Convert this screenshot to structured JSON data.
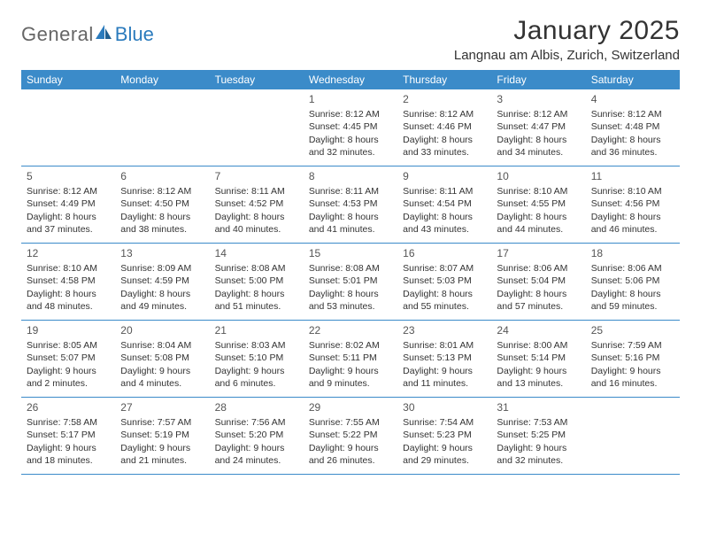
{
  "brand": {
    "part1": "General",
    "part2": "Blue"
  },
  "title": "January 2025",
  "location": "Langnau am Albis, Zurich, Switzerland",
  "colors": {
    "header_bg": "#3b8bc9",
    "header_text": "#ffffff",
    "rule": "#3b8bc9",
    "text": "#333333",
    "logo_gray": "#666666",
    "logo_blue": "#2b7bbd",
    "background": "#ffffff"
  },
  "weekdays": [
    "Sunday",
    "Monday",
    "Tuesday",
    "Wednesday",
    "Thursday",
    "Friday",
    "Saturday"
  ],
  "weeks": [
    [
      null,
      null,
      null,
      {
        "n": "1",
        "sunrise": "8:12 AM",
        "sunset": "4:45 PM",
        "dl1": "Daylight: 8 hours",
        "dl2": "and 32 minutes."
      },
      {
        "n": "2",
        "sunrise": "8:12 AM",
        "sunset": "4:46 PM",
        "dl1": "Daylight: 8 hours",
        "dl2": "and 33 minutes."
      },
      {
        "n": "3",
        "sunrise": "8:12 AM",
        "sunset": "4:47 PM",
        "dl1": "Daylight: 8 hours",
        "dl2": "and 34 minutes."
      },
      {
        "n": "4",
        "sunrise": "8:12 AM",
        "sunset": "4:48 PM",
        "dl1": "Daylight: 8 hours",
        "dl2": "and 36 minutes."
      }
    ],
    [
      {
        "n": "5",
        "sunrise": "8:12 AM",
        "sunset": "4:49 PM",
        "dl1": "Daylight: 8 hours",
        "dl2": "and 37 minutes."
      },
      {
        "n": "6",
        "sunrise": "8:12 AM",
        "sunset": "4:50 PM",
        "dl1": "Daylight: 8 hours",
        "dl2": "and 38 minutes."
      },
      {
        "n": "7",
        "sunrise": "8:11 AM",
        "sunset": "4:52 PM",
        "dl1": "Daylight: 8 hours",
        "dl2": "and 40 minutes."
      },
      {
        "n": "8",
        "sunrise": "8:11 AM",
        "sunset": "4:53 PM",
        "dl1": "Daylight: 8 hours",
        "dl2": "and 41 minutes."
      },
      {
        "n": "9",
        "sunrise": "8:11 AM",
        "sunset": "4:54 PM",
        "dl1": "Daylight: 8 hours",
        "dl2": "and 43 minutes."
      },
      {
        "n": "10",
        "sunrise": "8:10 AM",
        "sunset": "4:55 PM",
        "dl1": "Daylight: 8 hours",
        "dl2": "and 44 minutes."
      },
      {
        "n": "11",
        "sunrise": "8:10 AM",
        "sunset": "4:56 PM",
        "dl1": "Daylight: 8 hours",
        "dl2": "and 46 minutes."
      }
    ],
    [
      {
        "n": "12",
        "sunrise": "8:10 AM",
        "sunset": "4:58 PM",
        "dl1": "Daylight: 8 hours",
        "dl2": "and 48 minutes."
      },
      {
        "n": "13",
        "sunrise": "8:09 AM",
        "sunset": "4:59 PM",
        "dl1": "Daylight: 8 hours",
        "dl2": "and 49 minutes."
      },
      {
        "n": "14",
        "sunrise": "8:08 AM",
        "sunset": "5:00 PM",
        "dl1": "Daylight: 8 hours",
        "dl2": "and 51 minutes."
      },
      {
        "n": "15",
        "sunrise": "8:08 AM",
        "sunset": "5:01 PM",
        "dl1": "Daylight: 8 hours",
        "dl2": "and 53 minutes."
      },
      {
        "n": "16",
        "sunrise": "8:07 AM",
        "sunset": "5:03 PM",
        "dl1": "Daylight: 8 hours",
        "dl2": "and 55 minutes."
      },
      {
        "n": "17",
        "sunrise": "8:06 AM",
        "sunset": "5:04 PM",
        "dl1": "Daylight: 8 hours",
        "dl2": "and 57 minutes."
      },
      {
        "n": "18",
        "sunrise": "8:06 AM",
        "sunset": "5:06 PM",
        "dl1": "Daylight: 8 hours",
        "dl2": "and 59 minutes."
      }
    ],
    [
      {
        "n": "19",
        "sunrise": "8:05 AM",
        "sunset": "5:07 PM",
        "dl1": "Daylight: 9 hours",
        "dl2": "and 2 minutes."
      },
      {
        "n": "20",
        "sunrise": "8:04 AM",
        "sunset": "5:08 PM",
        "dl1": "Daylight: 9 hours",
        "dl2": "and 4 minutes."
      },
      {
        "n": "21",
        "sunrise": "8:03 AM",
        "sunset": "5:10 PM",
        "dl1": "Daylight: 9 hours",
        "dl2": "and 6 minutes."
      },
      {
        "n": "22",
        "sunrise": "8:02 AM",
        "sunset": "5:11 PM",
        "dl1": "Daylight: 9 hours",
        "dl2": "and 9 minutes."
      },
      {
        "n": "23",
        "sunrise": "8:01 AM",
        "sunset": "5:13 PM",
        "dl1": "Daylight: 9 hours",
        "dl2": "and 11 minutes."
      },
      {
        "n": "24",
        "sunrise": "8:00 AM",
        "sunset": "5:14 PM",
        "dl1": "Daylight: 9 hours",
        "dl2": "and 13 minutes."
      },
      {
        "n": "25",
        "sunrise": "7:59 AM",
        "sunset": "5:16 PM",
        "dl1": "Daylight: 9 hours",
        "dl2": "and 16 minutes."
      }
    ],
    [
      {
        "n": "26",
        "sunrise": "7:58 AM",
        "sunset": "5:17 PM",
        "dl1": "Daylight: 9 hours",
        "dl2": "and 18 minutes."
      },
      {
        "n": "27",
        "sunrise": "7:57 AM",
        "sunset": "5:19 PM",
        "dl1": "Daylight: 9 hours",
        "dl2": "and 21 minutes."
      },
      {
        "n": "28",
        "sunrise": "7:56 AM",
        "sunset": "5:20 PM",
        "dl1": "Daylight: 9 hours",
        "dl2": "and 24 minutes."
      },
      {
        "n": "29",
        "sunrise": "7:55 AM",
        "sunset": "5:22 PM",
        "dl1": "Daylight: 9 hours",
        "dl2": "and 26 minutes."
      },
      {
        "n": "30",
        "sunrise": "7:54 AM",
        "sunset": "5:23 PM",
        "dl1": "Daylight: 9 hours",
        "dl2": "and 29 minutes."
      },
      {
        "n": "31",
        "sunrise": "7:53 AM",
        "sunset": "5:25 PM",
        "dl1": "Daylight: 9 hours",
        "dl2": "and 32 minutes."
      },
      null
    ]
  ],
  "labels": {
    "sunrise_prefix": "Sunrise: ",
    "sunset_prefix": "Sunset: "
  }
}
